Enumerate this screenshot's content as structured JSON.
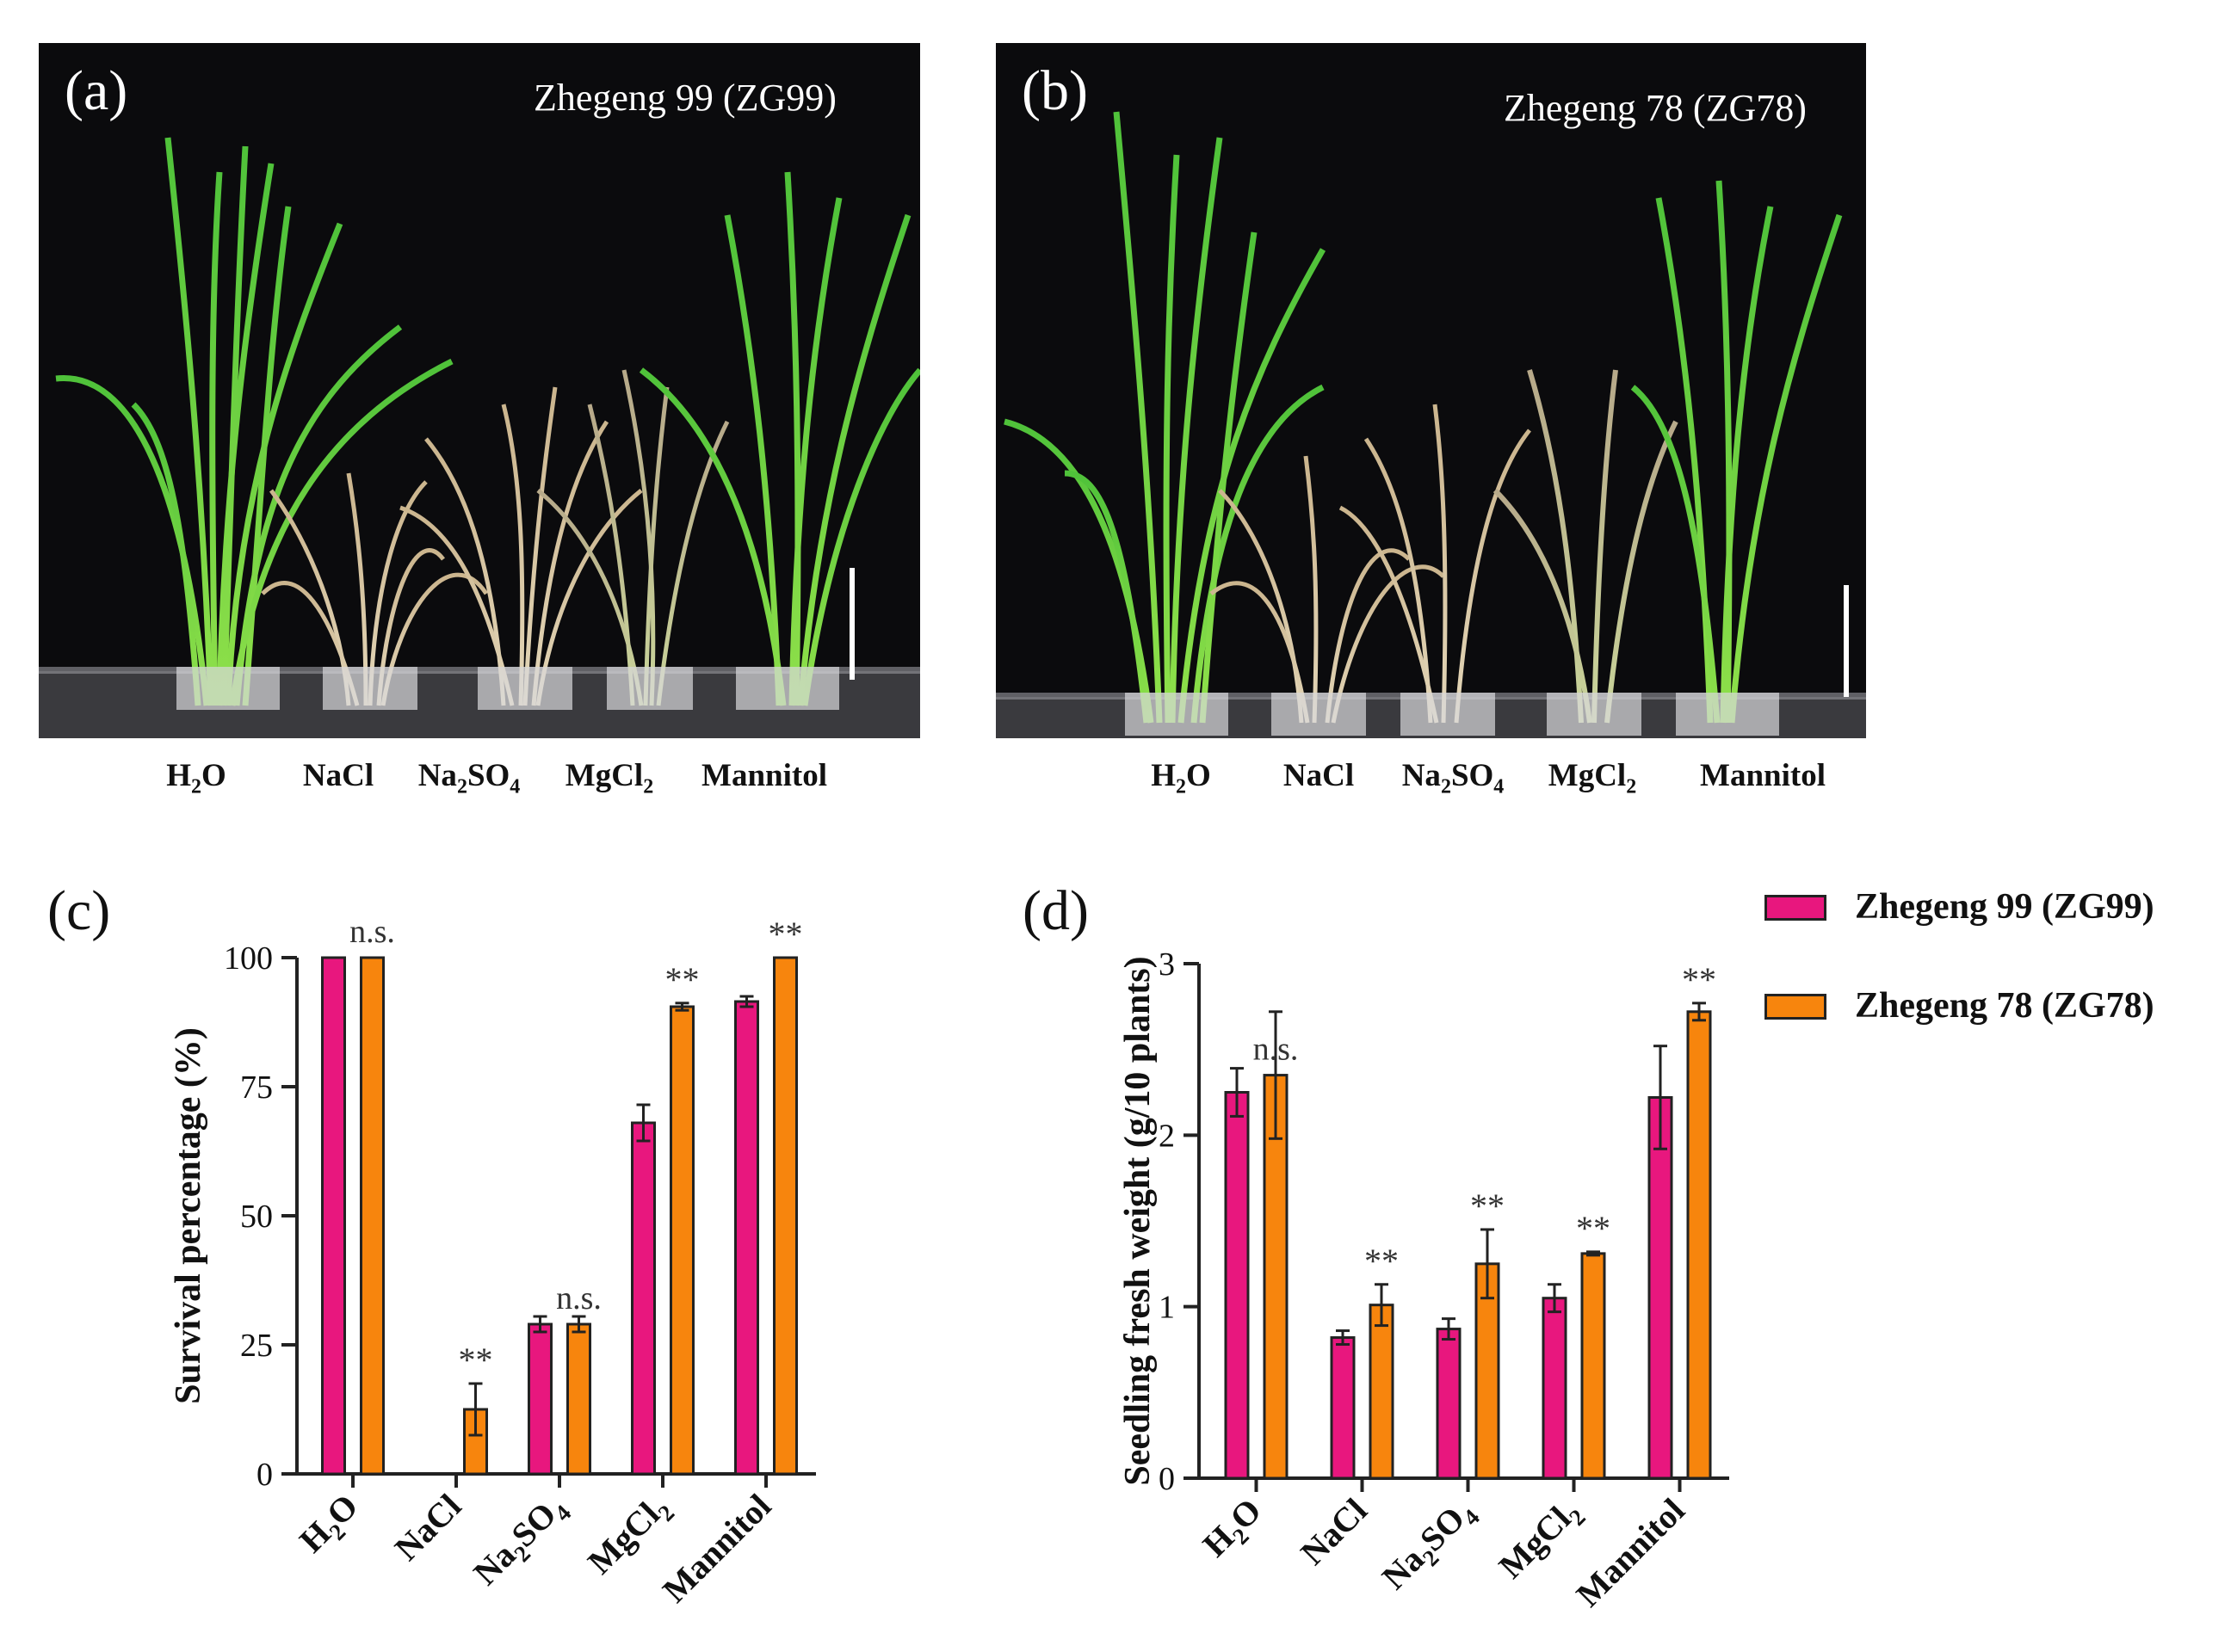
{
  "panels": {
    "a": {
      "letter": "(a)",
      "title": "Zhegeng 99 (ZG99)"
    },
    "b": {
      "letter": "(b)",
      "title": "Zhegeng 78 (ZG78)"
    },
    "c": {
      "letter": "(c)"
    },
    "d": {
      "letter": "(d)"
    }
  },
  "photo_labels": [
    {
      "main": "H",
      "sub": "2",
      "tail": "O"
    },
    {
      "main": "NaCl",
      "sub": "",
      "tail": ""
    },
    {
      "main": "Na",
      "sub": "2",
      "tail": "SO",
      "sub2": "4"
    },
    {
      "main": "MgCl",
      "sub": "2",
      "tail": ""
    },
    {
      "main": "Mannitol",
      "sub": "",
      "tail": ""
    }
  ],
  "colors": {
    "zg99": "#e8177e",
    "zg78": "#f7850d"
  },
  "legend": [
    {
      "label": "Zhegeng 99 (ZG99)",
      "color": "#e8177e"
    },
    {
      "label": "Zhegeng 78 (ZG78)",
      "color": "#f7850d"
    }
  ],
  "chart_data": [
    {
      "id": "c",
      "type": "bar",
      "ylabel": "Survival percentage (%)",
      "categories": [
        "H2O",
        "NaCl",
        "Na2SO4",
        "MgCl2",
        "Mannitol"
      ],
      "yticks": [
        0,
        25,
        50,
        75,
        100
      ],
      "ylim": [
        0,
        100
      ],
      "series": [
        {
          "name": "Zhegeng 99 (ZG99)",
          "values": [
            100,
            0,
            29,
            68,
            91.5
          ],
          "errors": [
            0,
            0,
            1.5,
            3.5,
            1
          ]
        },
        {
          "name": "Zhegeng 78 (ZG78)",
          "values": [
            100,
            12.5,
            29,
            90.5,
            100
          ],
          "errors": [
            0,
            5,
            1.5,
            0.7,
            0
          ]
        }
      ],
      "annotations": [
        "n.s.",
        "**",
        "n.s.",
        "**",
        "**"
      ]
    },
    {
      "id": "d",
      "type": "bar",
      "ylabel": "Seedling fresh weight (g/10 plants)",
      "categories": [
        "H2O",
        "NaCl",
        "Na2SO4",
        "MgCl2",
        "Mannitol"
      ],
      "yticks": [
        0,
        1,
        2,
        3
      ],
      "ylim": [
        0,
        3
      ],
      "series": [
        {
          "name": "Zhegeng 99 (ZG99)",
          "values": [
            2.25,
            0.82,
            0.87,
            1.05,
            2.22
          ],
          "errors": [
            0.14,
            0.04,
            0.06,
            0.08,
            0.3
          ]
        },
        {
          "name": "Zhegeng 78 (ZG78)",
          "values": [
            2.35,
            1.01,
            1.25,
            1.31,
            2.72
          ],
          "errors": [
            0.37,
            0.12,
            0.2,
            0.01,
            0.05
          ]
        }
      ],
      "annotations": [
        "n.s.",
        "**",
        "**",
        "**",
        "**"
      ]
    }
  ]
}
